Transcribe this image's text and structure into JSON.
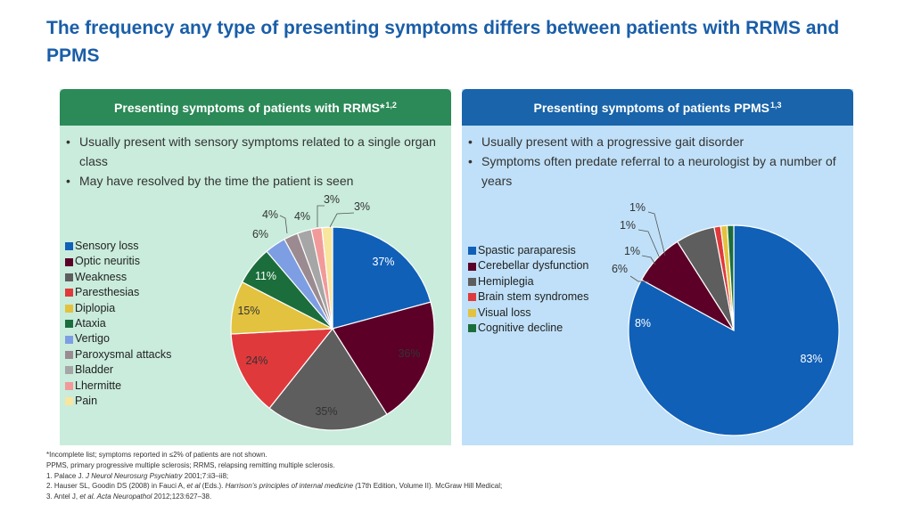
{
  "title": "The frequency any type of presenting symptoms differs between patients with RRMS and PPMS",
  "left_panel": {
    "heading": "Presenting symptoms of patients with RRMS*",
    "heading_sup": "1,2",
    "bullets": [
      "Usually present with sensory symptoms related to a single organ class",
      "May have resolved by the time the patient is seen"
    ]
  },
  "right_panel": {
    "heading": "Presenting symptoms of patients PPMS",
    "heading_sup": "1,3",
    "bullets": [
      "Usually present with a progressive gait disorder",
      "Symptoms often predate referral to a neurologist by a number of years"
    ]
  },
  "chart_data": [
    {
      "type": "pie",
      "title": "Presenting symptoms of patients with RRMS",
      "legend_position": "left",
      "categories": [
        "Sensory loss",
        "Optic neuritis",
        "Weakness",
        "Paresthesias",
        "Diplopia",
        "Ataxia",
        "Vertigo",
        "Paroxysmal attacks",
        "Bladder",
        "Lhermitte",
        "Pain"
      ],
      "values": [
        37,
        36,
        35,
        24,
        15,
        11,
        6,
        4,
        4,
        3,
        3
      ],
      "labels": [
        "37%",
        "36%",
        "35%",
        "24%",
        "15%",
        "11%",
        "6%",
        "4%",
        "4%",
        "3%",
        "3%"
      ],
      "colors": [
        "#1060b8",
        "#5c0028",
        "#5e5e5e",
        "#e0393c",
        "#e3c23f",
        "#1b6e3b",
        "#7e9ee3",
        "#9b8b90",
        "#a6a6a6",
        "#f29a9a",
        "#f8e59e"
      ]
    },
    {
      "type": "pie",
      "title": "Presenting symptoms of patients PPMS",
      "legend_position": "left",
      "categories": [
        "Spastic paraparesis",
        "Cerebellar dysfunction",
        "Hemiplegia",
        "Brain stem syndromes",
        "Visual loss",
        "Cognitive decline"
      ],
      "values": [
        83,
        8,
        6,
        1,
        1,
        1
      ],
      "labels": [
        "83%",
        "8%",
        "6%",
        "1%",
        "1%",
        "1%"
      ],
      "colors": [
        "#1060b8",
        "#5c0028",
        "#5e5e5e",
        "#e0393c",
        "#e3c23f",
        "#1b6e3b"
      ]
    }
  ],
  "footer": {
    "note": "*Incomplete list; symptoms reported in ≤2% of patients are not shown.",
    "abbrev": "PPMS, primary progressive multiple sclerosis; RRMS, relapsing remitting multiple sclerosis.",
    "ref1_a": "1. Palace J. ",
    "ref1_journal": "J Neurol Neurosurg Psychiatry",
    "ref1_b": " 2001;7:ii3–ii8;",
    "ref2_a": "2. Hauser SL, Goodin DS (2008) in Fauci A, ",
    "ref2_etal": "et al",
    "ref2_b": " (Eds.). ",
    "ref2_book": "Harrison’s principles of internal medicine (",
    "ref2_c": "17th Edition, Volume II). McGraw Hill Medical;",
    "ref3_a": "3. Antel J, ",
    "ref3_journal": "et al. Acta Neuropathol",
    "ref3_b": " 2012;123:627–38."
  }
}
